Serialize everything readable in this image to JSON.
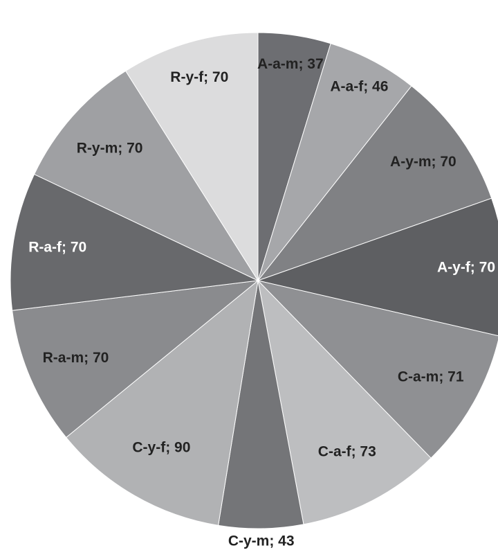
{
  "chart_data": {
    "type": "pie",
    "start_angle_deg": 0,
    "direction": "clockwise",
    "legend": "none",
    "title": "",
    "slices": [
      {
        "label": "A-a-m; 37",
        "category": "A-a-m",
        "value": 37,
        "color": "#6d6e72",
        "label_color": "#222222"
      },
      {
        "label": "A-a-f; 46",
        "category": "A-a-f",
        "value": 46,
        "color": "#a6a7aa",
        "label_color": "#222222"
      },
      {
        "label": "A-y-m; 70",
        "category": "A-y-m",
        "value": 70,
        "color": "#808184",
        "label_color": "#222222"
      },
      {
        "label": "A-y-f; 70",
        "category": "A-y-f",
        "value": 70,
        "color": "#5e5f62",
        "label_color": "#ffffff"
      },
      {
        "label": "C-a-m; 71",
        "category": "C-a-m",
        "value": 71,
        "color": "#8f9093",
        "label_color": "#222222"
      },
      {
        "label": "C-a-f; 73",
        "category": "C-a-f",
        "value": 73,
        "color": "#bdbec0",
        "label_color": "#222222"
      },
      {
        "label": "C-y-m; 43",
        "category": "C-y-m",
        "value": 43,
        "color": "#747578",
        "label_color": "#222222"
      },
      {
        "label": "C-y-f; 90",
        "category": "C-y-f",
        "value": 90,
        "color": "#b1b2b4",
        "label_color": "#222222"
      },
      {
        "label": "R-a-m; 70",
        "category": "R-a-m",
        "value": 70,
        "color": "#8a8b8e",
        "label_color": "#222222"
      },
      {
        "label": "R-a-f; 70",
        "category": "R-a-f",
        "value": 70,
        "color": "#68696c",
        "label_color": "#ffffff"
      },
      {
        "label": "R-y-m; 70",
        "category": "R-y-m",
        "value": 70,
        "color": "#9fa0a3",
        "label_color": "#222222"
      },
      {
        "label": "R-y-f; 70",
        "category": "R-y-f",
        "value": 70,
        "color": "#dcdcdd",
        "label_color": "#222222"
      }
    ]
  }
}
